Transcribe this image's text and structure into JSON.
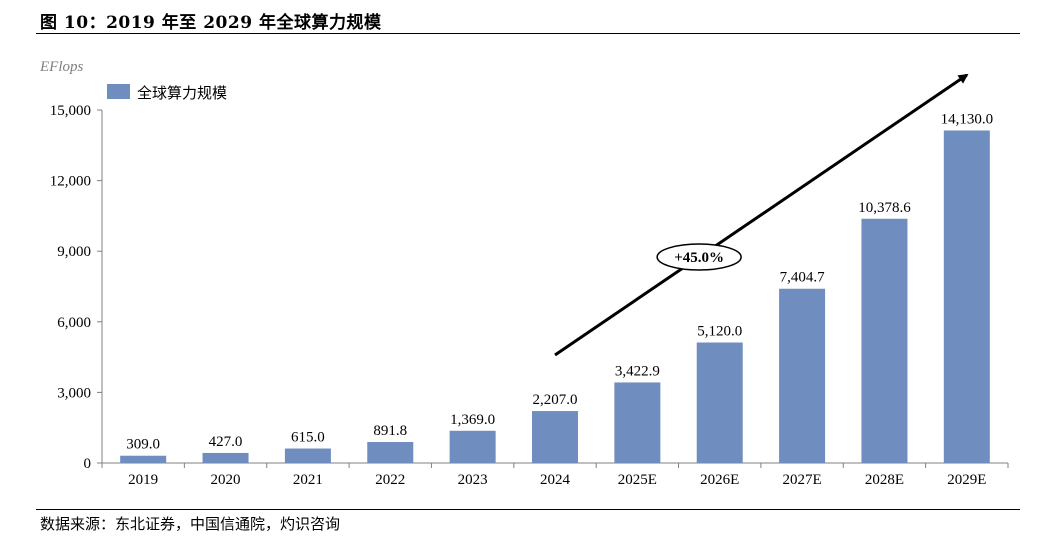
{
  "figure": {
    "title": "图 10：2019 年至 2029 年全球算力规模",
    "source": "数据来源：东北证券，中国信通院，灼识咨询"
  },
  "chart_data": {
    "type": "bar",
    "unit": "EFlops",
    "categories": [
      "2019",
      "2020",
      "2021",
      "2022",
      "2023",
      "2024",
      "2025E",
      "2026E",
      "2027E",
      "2028E",
      "2029E"
    ],
    "series": [
      {
        "name": "全球算力规模",
        "values": [
          309.0,
          427.0,
          615.0,
          891.8,
          1369.0,
          2207.0,
          3422.9,
          5120.0,
          7404.7,
          10378.6,
          14130.0
        ],
        "value_labels": [
          "309.0",
          "427.0",
          "615.0",
          "891.8",
          "1,369.0",
          "2,207.0",
          "3,422.9",
          "5,120.0",
          "7,404.7",
          "10,378.6",
          "14,130.0"
        ],
        "color": "#6F8DBF"
      }
    ],
    "ylim": [
      0,
      15000
    ],
    "yticks": [
      0,
      3000,
      6000,
      9000,
      12000,
      15000
    ],
    "ytick_labels": [
      "0",
      "3,000",
      "6,000",
      "9,000",
      "12,000",
      "15,000"
    ],
    "grid": false,
    "legend_position": "top-left",
    "annotation": {
      "text": "+45.0%",
      "type": "growth-arrow",
      "from_category": "2024",
      "to_category": "2029E"
    }
  }
}
